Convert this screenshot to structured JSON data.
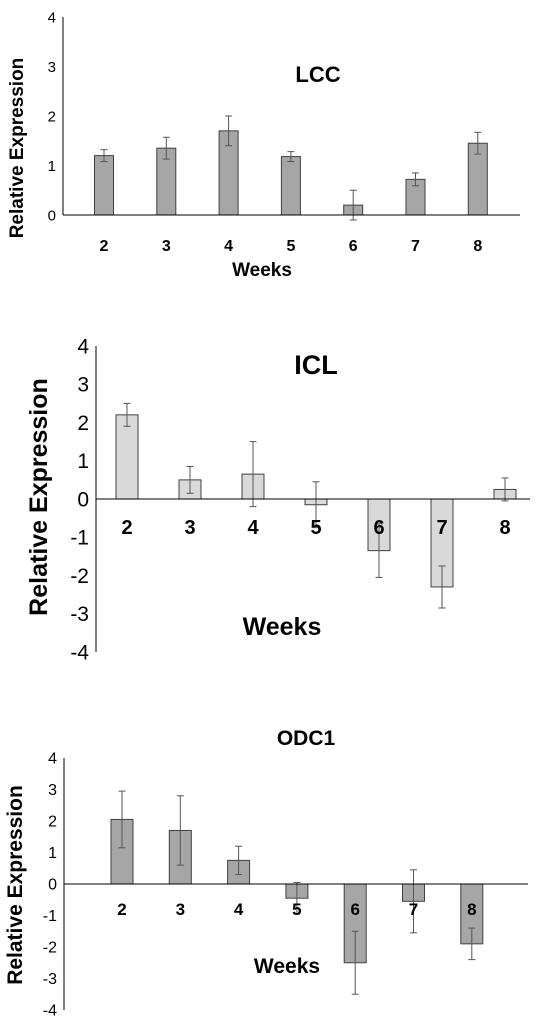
{
  "chart_data": [
    {
      "type": "bar",
      "title": "LCC",
      "xlabel": "Weeks",
      "ylabel": "Relative Expression",
      "categories": [
        "2",
        "3",
        "4",
        "5",
        "6",
        "7",
        "8"
      ],
      "values": [
        1.2,
        1.35,
        1.7,
        1.18,
        0.2,
        0.72,
        1.45
      ],
      "errors": [
        0.12,
        0.22,
        0.3,
        0.1,
        0.3,
        0.13,
        0.22
      ],
      "ylim": [
        0,
        4
      ],
      "yticks": [
        "0",
        "1",
        "2",
        "3",
        "4"
      ],
      "grid": false,
      "bar_color": "#a6a6a6"
    },
    {
      "type": "bar",
      "title": "ICL",
      "xlabel": "Weeks",
      "ylabel": "Relative Expression",
      "categories": [
        "2",
        "3",
        "4",
        "5",
        "6",
        "7",
        "8"
      ],
      "values": [
        2.2,
        0.5,
        0.65,
        -0.15,
        -1.35,
        -2.3,
        0.25
      ],
      "errors": [
        0.3,
        0.35,
        0.85,
        0.6,
        0.7,
        0.55,
        0.3
      ],
      "ylim": [
        -4,
        4
      ],
      "yticks": [
        "4",
        "3",
        "2",
        "1",
        "0",
        "-1",
        "-2",
        "-3",
        "-4"
      ],
      "grid": false,
      "bar_color": "#d9d9d9"
    },
    {
      "type": "bar",
      "title": "ODC1",
      "xlabel": "Weeks",
      "ylabel": "Relative Expression",
      "categories": [
        "2",
        "3",
        "4",
        "5",
        "6",
        "7",
        "8"
      ],
      "values": [
        2.05,
        1.7,
        0.75,
        -0.45,
        -2.5,
        -0.55,
        -1.9
      ],
      "errors": [
        0.9,
        1.1,
        0.45,
        0.5,
        1.0,
        1.0,
        0.5
      ],
      "ylim": [
        -4,
        4
      ],
      "yticks": [
        "4",
        "3",
        "2",
        "1",
        "0",
        "-1",
        "-2",
        "-3",
        "-4"
      ],
      "grid": false,
      "bar_color": "#a6a6a6"
    }
  ]
}
